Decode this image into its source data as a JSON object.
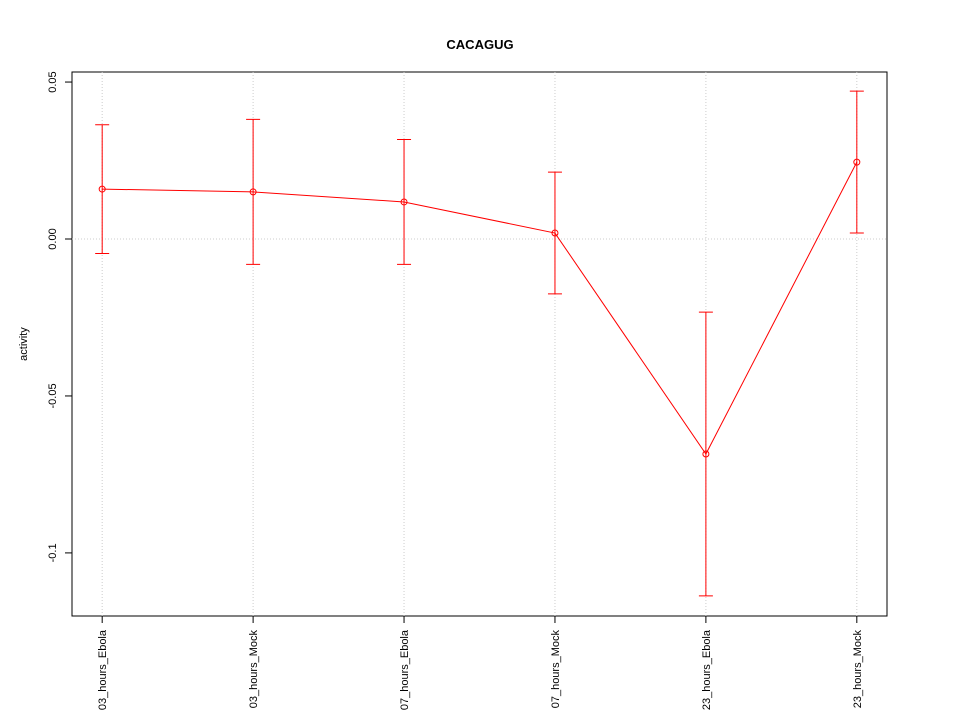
{
  "chart_data": {
    "type": "line",
    "title": "CACAGUG",
    "y_label": "activity",
    "categories": [
      "03_hours_Ebola",
      "03_hours_Mock",
      "07_hours_Ebola",
      "07_hours_Mock",
      "23_hours_Ebola",
      "23_hours_Mock"
    ],
    "series": [
      {
        "color": "#ff0000",
        "values": [
          0.0159,
          0.015,
          0.0118,
          0.0019,
          -0.0685,
          0.0245
        ],
        "errors": [
          0.0205,
          0.0231,
          0.0199,
          0.0194,
          0.0452,
          0.0226
        ]
      }
    ],
    "ylim": [
      -0.1201,
      0.0532
    ],
    "yticks": [
      -0.1,
      -0.05,
      {
        "value": 0,
        "label": "0.00"
      },
      0.05
    ],
    "reference_line": 0,
    "grid": true
  }
}
